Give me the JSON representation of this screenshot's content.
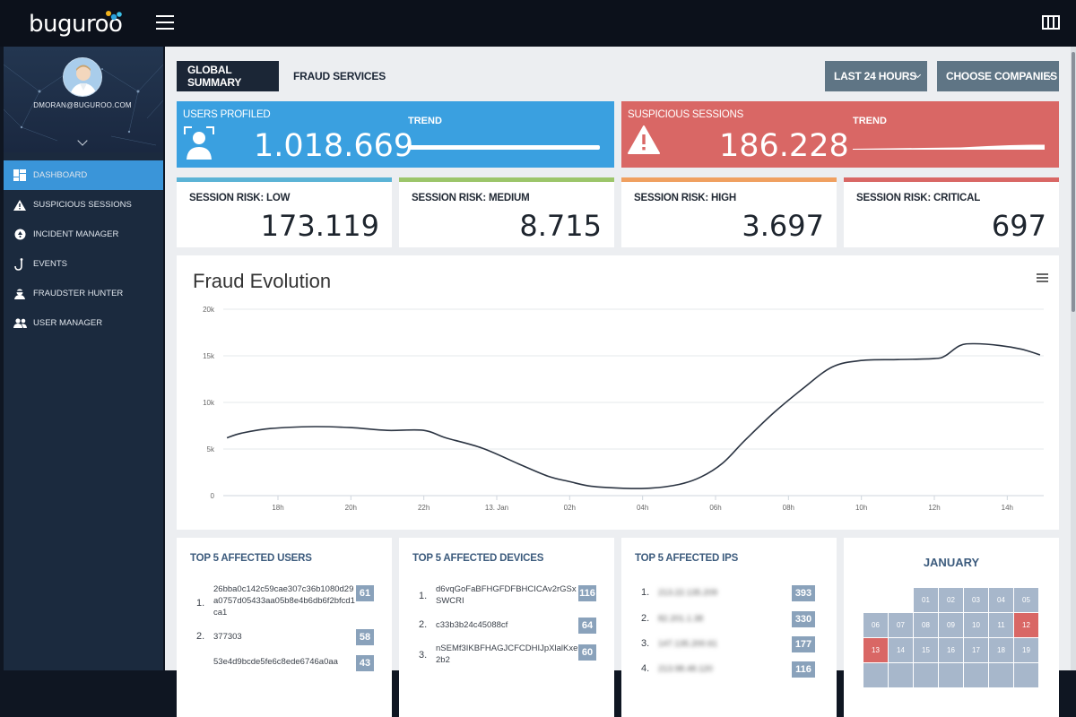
{
  "app": {
    "logo": "buguroo"
  },
  "user": {
    "email": "DMORAN@BUGUROO.COM"
  },
  "sidebar": {
    "items": [
      {
        "label": "DASHBOARD",
        "icon": "dashboard-icon",
        "active": true
      },
      {
        "label": "SUSPICIOUS SESSIONS",
        "icon": "warning-icon"
      },
      {
        "label": "INCIDENT MANAGER",
        "icon": "incident-icon"
      },
      {
        "label": "EVENTS",
        "icon": "hook-icon"
      },
      {
        "label": "FRAUDSTER HUNTER",
        "icon": "hunter-icon"
      },
      {
        "label": "USER MANAGER",
        "icon": "users-icon"
      }
    ]
  },
  "tabs": [
    {
      "label": "GLOBAL SUMMARY",
      "active": true
    },
    {
      "label": "FRAUD SERVICES",
      "active": false
    }
  ],
  "filters": {
    "period": "LAST 24 HOURS",
    "companies": "CHOOSE COMPANIES"
  },
  "kpis": {
    "users": {
      "label": "USERS PROFILED",
      "value": "1.018.669",
      "trend_label": "TREND"
    },
    "sessions": {
      "label": "SUSPICIOUS SESSIONS",
      "value": "186.228",
      "trend_label": "TREND"
    }
  },
  "risk": [
    {
      "label": "SESSION RISK: LOW",
      "value": "173.119",
      "color": "#5bb3d6"
    },
    {
      "label": "SESSION RISK: MEDIUM",
      "value": "8.715",
      "color": "#9cc56a"
    },
    {
      "label": "SESSION RISK: HIGH",
      "value": "3.697",
      "color": "#f0a060"
    },
    {
      "label": "SESSION RISK: CRITICAL",
      "value": "697",
      "color": "#d96765"
    }
  ],
  "chart": {
    "title": "Fraud Evolution"
  },
  "chart_data": {
    "type": "line",
    "title": "Fraud Evolution",
    "ylim": [
      0,
      20000
    ],
    "yticks": [
      {
        "label": "0",
        "value": 0
      },
      {
        "label": "5k",
        "value": 5000
      },
      {
        "label": "10k",
        "value": 10000
      },
      {
        "label": "15k",
        "value": 15000
      },
      {
        "label": "20k",
        "value": 20000
      }
    ],
    "xticks": [
      {
        "label": "18h",
        "t": 18
      },
      {
        "label": "20h",
        "t": 20
      },
      {
        "label": "22h",
        "t": 22
      },
      {
        "label": "13. Jan",
        "t": 24
      },
      {
        "label": "02h",
        "t": 26
      },
      {
        "label": "04h",
        "t": 28
      },
      {
        "label": "06h",
        "t": 30
      },
      {
        "label": "08h",
        "t": 32
      },
      {
        "label": "10h",
        "t": 34
      },
      {
        "label": "12h",
        "t": 36
      },
      {
        "label": "14h",
        "t": 38
      }
    ],
    "xlim": [
      16.5,
      39
    ],
    "series": [
      {
        "color": "#2b3442",
        "points": [
          [
            16.6,
            6200
          ],
          [
            17.0,
            6700
          ],
          [
            17.8,
            7200
          ],
          [
            19.0,
            7400
          ],
          [
            20.0,
            7300
          ],
          [
            21.0,
            7000
          ],
          [
            22.0,
            7000
          ],
          [
            22.6,
            6200
          ],
          [
            23.6,
            5100
          ],
          [
            24.6,
            3400
          ],
          [
            25.4,
            2100
          ],
          [
            26.0,
            1500
          ],
          [
            26.6,
            1000
          ],
          [
            27.4,
            800
          ],
          [
            28.2,
            800
          ],
          [
            29.0,
            1200
          ],
          [
            29.6,
            2000
          ],
          [
            30.2,
            3500
          ],
          [
            30.8,
            5900
          ],
          [
            31.6,
            8900
          ],
          [
            32.4,
            11500
          ],
          [
            33.2,
            13800
          ],
          [
            34.0,
            14500
          ],
          [
            35.0,
            14600
          ],
          [
            36.0,
            14700
          ],
          [
            36.3,
            15000
          ],
          [
            36.7,
            16100
          ],
          [
            37.1,
            16300
          ],
          [
            37.8,
            16100
          ],
          [
            38.4,
            15700
          ],
          [
            38.9,
            15100
          ]
        ]
      }
    ]
  },
  "top_users": {
    "title": "TOP 5 AFFECTED USERS",
    "rows": [
      {
        "n": "1.",
        "text": "26bba0c142c59cae307c36b1080d29a0757d05433aa05b8e4b6db6f2bfcd1ca1",
        "count": "61"
      },
      {
        "n": "2.",
        "text": "377303",
        "count": "58"
      },
      {
        "n": "",
        "text": "53e4d9bcde5fe6c8ede6746a0aa",
        "count": "43"
      }
    ]
  },
  "top_devices": {
    "title": "TOP 5 AFFECTED DEVICES",
    "rows": [
      {
        "n": "1.",
        "text": "d6vqGoFaBFHGFDFBHCICAv2rGSxSWCRI",
        "count": "116"
      },
      {
        "n": "2.",
        "text": "c33b3b24c45088cf",
        "count": "64"
      },
      {
        "n": "3.",
        "text": "nSEMf3IKBFHAGJCFCDHIJpXlalKxe2b2",
        "count": "60"
      }
    ]
  },
  "top_ips": {
    "title": "TOP 5 AFFECTED IPS",
    "rows": [
      {
        "n": "1.",
        "text": "213.22.135.209",
        "count": "393"
      },
      {
        "n": "2.",
        "text": "82.201.1.38",
        "count": "330"
      },
      {
        "n": "3.",
        "text": "147.135.200.61",
        "count": "177"
      },
      {
        "n": "4.",
        "text": "213.98.48.120",
        "count": "116"
      }
    ]
  },
  "calendar": {
    "month": "JANUARY",
    "row1": [
      "01",
      "02",
      "03",
      "04",
      "05"
    ],
    "row2": [
      "06",
      "07",
      "08",
      "09",
      "10",
      "11",
      "12"
    ],
    "row3": [
      "13",
      "14",
      "15",
      "16",
      "17",
      "18",
      "19"
    ],
    "highlight": [
      "12",
      "13"
    ]
  }
}
